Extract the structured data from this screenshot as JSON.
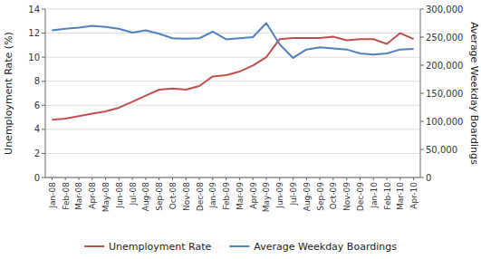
{
  "chart_data": {
    "type": "line",
    "ylabel": "Unemployment Rate (%)",
    "y2label": "Average Weekday Boardings",
    "categories": [
      "Jan-08",
      "Feb-08",
      "Mar-08",
      "Apr-08",
      "May-08",
      "Jun-08",
      "Jul-08",
      "Aug-08",
      "Sep-08",
      "Oct-08",
      "Nov-08",
      "Dec-08",
      "Jan-09",
      "Feb-09",
      "Mar-09",
      "Apr-09",
      "May-09",
      "Jun-09",
      "Jul-09",
      "Aug-09",
      "Sep-09",
      "Oct-09",
      "Nov-09",
      "Dec-09",
      "Jan-10",
      "Feb-10",
      "Mar-10",
      "Apr-10"
    ],
    "series": [
      {
        "name": "Unemployment Rate",
        "color": "#c0504d",
        "values": [
          4.8,
          4.9,
          5.1,
          5.3,
          5.5,
          5.8,
          6.3,
          6.8,
          7.3,
          7.4,
          7.3,
          7.6,
          8.4,
          8.5,
          8.8,
          9.3,
          10.0,
          11.5,
          11.6,
          11.6,
          11.6,
          11.7,
          11.4,
          11.5,
          11.5,
          11.1,
          12.0,
          11.5
        ]
      },
      {
        "name": "Average Weekday Boardings",
        "color": "#4f81bd",
        "axis": "y2",
        "values": [
          262000,
          265000,
          267000,
          270000,
          268000,
          265000,
          258000,
          262000,
          256000,
          248000,
          247000,
          248000,
          260000,
          246000,
          248000,
          250000,
          275000,
          237000,
          213000,
          228000,
          232000,
          230000,
          228000,
          221000,
          219000,
          221000,
          228000,
          229000
        ]
      }
    ],
    "ylim": [
      0,
      14
    ],
    "yticks": [
      0,
      2,
      4,
      6,
      8,
      10,
      12,
      14
    ],
    "y2lim": [
      0,
      300000
    ],
    "y2ticks": [
      0,
      {
        "value": 50000,
        "label": "50,000"
      },
      {
        "value": 100000,
        "label": "100,000"
      },
      {
        "value": 150000,
        "label": "150,000"
      },
      {
        "value": 200000,
        "label": "200,000"
      },
      {
        "value": 250000,
        "label": "250,000"
      },
      {
        "value": 300000,
        "label": "300,000"
      }
    ],
    "grid": true,
    "legend": "bottom"
  }
}
